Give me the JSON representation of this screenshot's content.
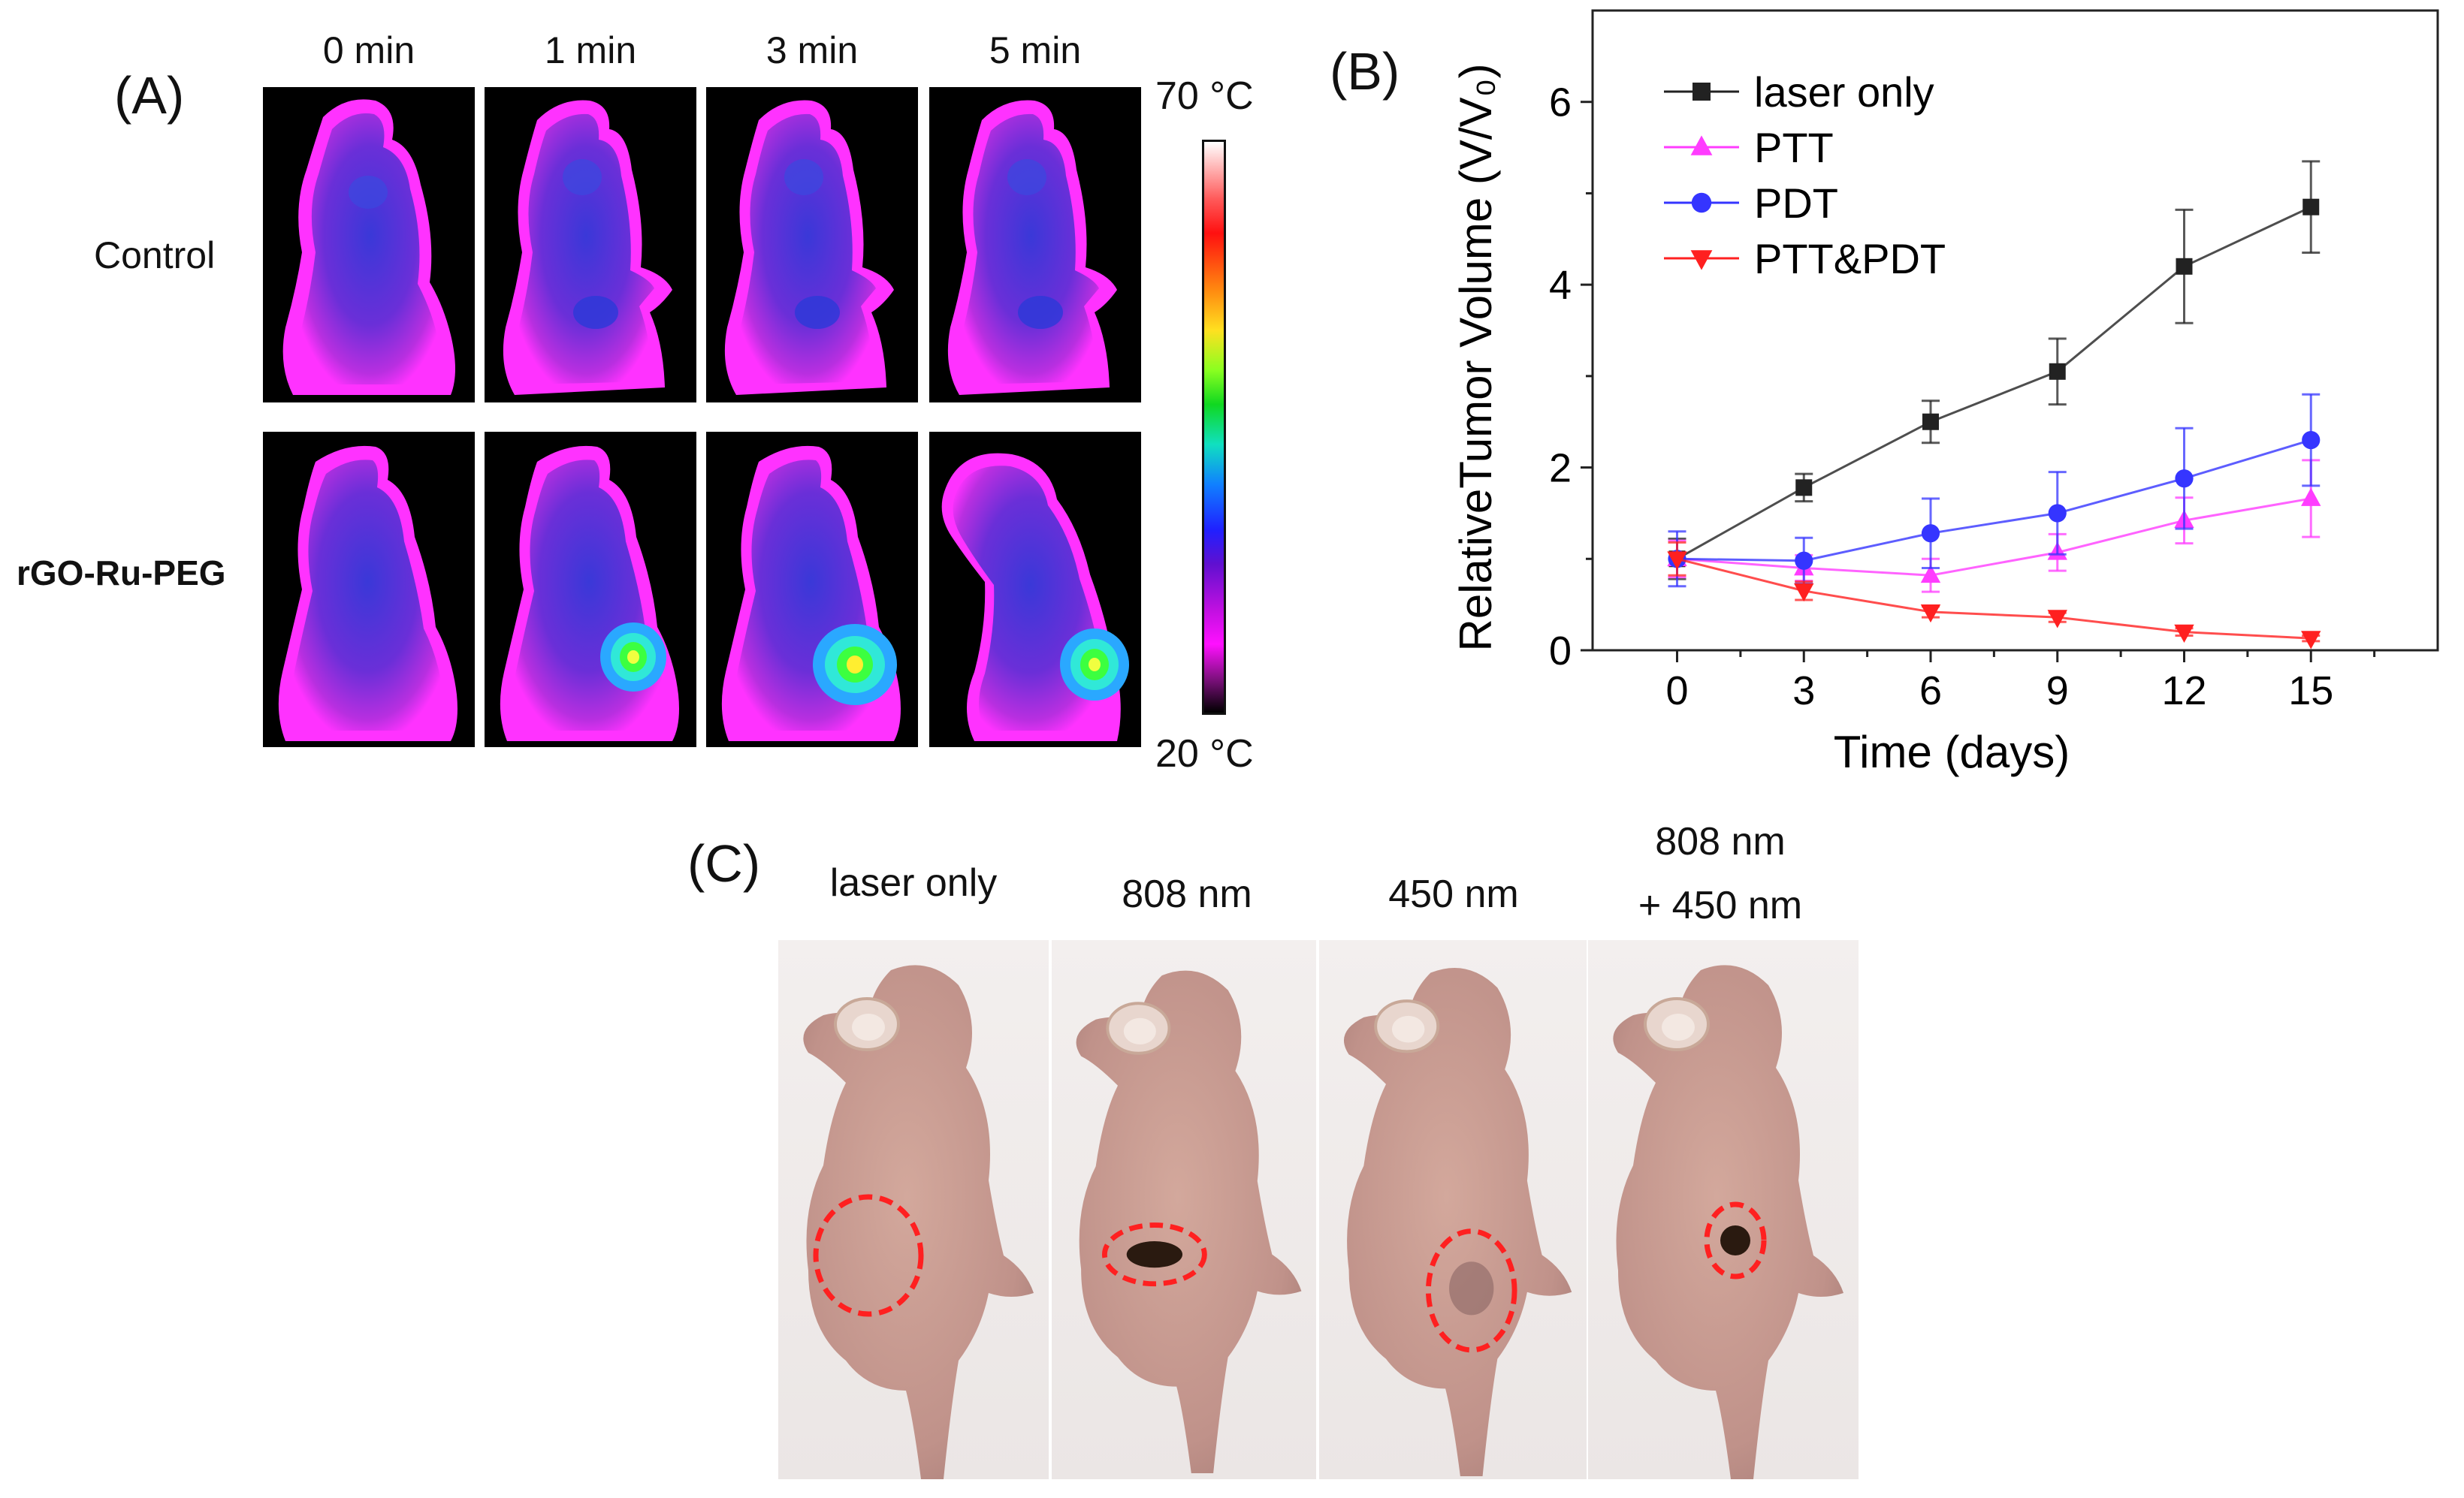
{
  "panel_a": {
    "label": "(A)",
    "time_labels": [
      "0 min",
      "1 min",
      "3 min",
      "5 min"
    ],
    "row_labels": [
      "Control",
      "rGO-Ru-PEG"
    ],
    "scale_max": "70 °C",
    "scale_min": "20 °C",
    "colors": {
      "body": "#6a2fd8",
      "edge": "#ff32ff",
      "hot": "#3cff40"
    }
  },
  "panel_b": {
    "label": "(B)"
  },
  "chart_data": {
    "type": "line",
    "x": [
      0,
      3,
      6,
      9,
      12,
      15
    ],
    "xlabel": "Time (days)",
    "ylabel": "RelativeTumor Volume (V/V₀)",
    "xlim": [
      -2,
      18
    ],
    "ylim": [
      0,
      7
    ],
    "xticks": [
      0,
      3,
      6,
      9,
      12,
      15
    ],
    "yticks": [
      0,
      2,
      4,
      6
    ],
    "legend_position": "top-left",
    "series": [
      {
        "name": "laser only",
        "color": "#222222",
        "marker": "square",
        "values": [
          1.0,
          1.78,
          2.5,
          3.05,
          4.2,
          4.85
        ],
        "errors": [
          0.22,
          0.15,
          0.23,
          0.36,
          0.62,
          0.5
        ]
      },
      {
        "name": "PTT",
        "color": "#ff3cff",
        "marker": "triangle-up",
        "values": [
          1.0,
          0.9,
          0.82,
          1.07,
          1.42,
          1.66
        ],
        "errors": [
          0.2,
          0.14,
          0.18,
          0.2,
          0.25,
          0.42
        ]
      },
      {
        "name": "PDT",
        "color": "#3535ff",
        "marker": "circle",
        "values": [
          1.0,
          0.98,
          1.28,
          1.5,
          1.88,
          2.3
        ],
        "errors": [
          0.3,
          0.25,
          0.38,
          0.45,
          0.55,
          0.5
        ]
      },
      {
        "name": "PTT&PDT",
        "color": "#ff2020",
        "marker": "triangle-down",
        "values": [
          1.0,
          0.65,
          0.42,
          0.36,
          0.2,
          0.13
        ],
        "errors": [
          0.18,
          0.1,
          0.06,
          0.05,
          0.04,
          0.03
        ]
      }
    ]
  },
  "panel_c": {
    "label": "(C)",
    "photo_labels": [
      "laser only",
      "808 nm",
      "450 nm",
      "808 nm",
      "+ 450 nm"
    ],
    "colors": {
      "skin": "#c99c92",
      "marker": "#ff2020"
    }
  }
}
